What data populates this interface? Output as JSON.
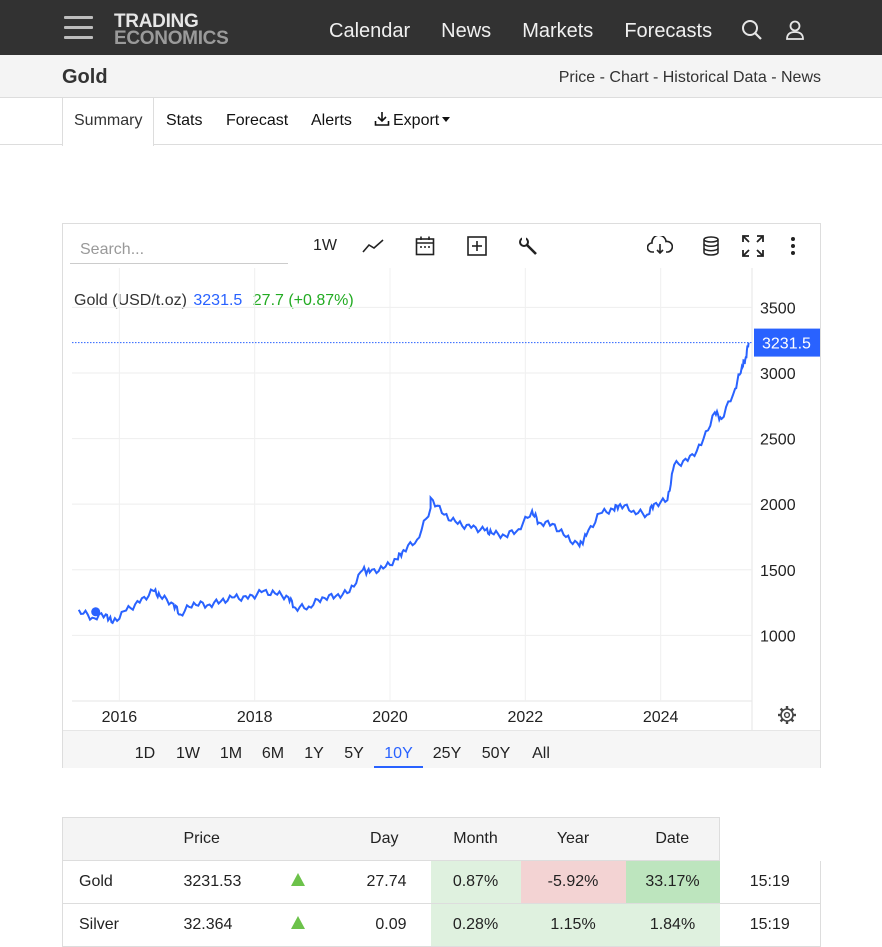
{
  "nav": {
    "logo_line1": "TRADING",
    "logo_line2": "ECONOMICS",
    "links": [
      "Calendar",
      "News",
      "Markets",
      "Forecasts"
    ]
  },
  "titlebar": {
    "title": "Gold",
    "links": "Price - Chart - Historical Data - News"
  },
  "tabs": {
    "summary": "Summary",
    "stats": "Stats",
    "forecast": "Forecast",
    "alerts": "Alerts",
    "export": "Export"
  },
  "chart_toolbar": {
    "search_placeholder": "Search...",
    "interval": "1W"
  },
  "legend": {
    "name": "Gold (USD/t.oz)",
    "price": "3231.5",
    "change": "27.7 (+0.87%)"
  },
  "chart_data": {
    "type": "line",
    "series": [
      {
        "name": "Gold (USD/t.oz)",
        "color": "#2962ff",
        "x": [
          2015.4,
          2015.6,
          2015.8,
          2015.9,
          2016.1,
          2016.3,
          2016.5,
          2016.6,
          2016.8,
          2016.9,
          2017.1,
          2017.3,
          2017.5,
          2017.7,
          2017.9,
          2018.1,
          2018.3,
          2018.5,
          2018.6,
          2018.8,
          2019.0,
          2019.2,
          2019.4,
          2019.6,
          2019.7,
          2019.9,
          2020.1,
          2020.2,
          2020.4,
          2020.6,
          2020.6,
          2020.8,
          2021.0,
          2021.2,
          2021.4,
          2021.5,
          2021.7,
          2021.9,
          2022.1,
          2022.2,
          2022.4,
          2022.6,
          2022.8,
          2022.9,
          2023.1,
          2023.3,
          2023.4,
          2023.6,
          2023.8,
          2023.9,
          2024.1,
          2024.2,
          2024.4,
          2024.6,
          2024.8,
          2024.9,
          2025.1,
          2025.2,
          2025.25,
          2025.3
        ],
        "y": [
          1195,
          1135,
          1160,
          1095,
          1190,
          1250,
          1340,
          1300,
          1240,
          1160,
          1250,
          1230,
          1260,
          1290,
          1280,
          1330,
          1320,
          1290,
          1210,
          1220,
          1290,
          1300,
          1330,
          1500,
          1480,
          1510,
          1580,
          1650,
          1730,
          1970,
          2050,
          1920,
          1850,
          1820,
          1800,
          1780,
          1760,
          1810,
          1950,
          1860,
          1850,
          1750,
          1680,
          1760,
          1930,
          1960,
          2000,
          1950,
          1920,
          2000,
          2030,
          2300,
          2330,
          2450,
          2700,
          2650,
          2880,
          3050,
          3100,
          3231.5
        ]
      }
    ],
    "x_ticks": [
      "2016",
      "2018",
      "2020",
      "2022",
      "2024"
    ],
    "x_tick_values": [
      2016,
      2018,
      2020,
      2022,
      2024
    ],
    "y_ticks": [
      1000,
      1500,
      2000,
      2500,
      3000,
      3500
    ],
    "xlim": [
      2015.3,
      2025.35
    ],
    "ylim": [
      500,
      3800
    ],
    "last_value_label": "3231.5",
    "last_value": 3231.5,
    "grid": true
  },
  "ranges": [
    "1D",
    "1W",
    "1M",
    "6M",
    "1Y",
    "5Y",
    "10Y",
    "25Y",
    "50Y",
    "All"
  ],
  "active_range": "10Y",
  "table": {
    "headers": [
      "",
      "Price",
      "",
      "Day",
      "Month",
      "Year",
      "Date"
    ],
    "rows": [
      {
        "name": "Gold",
        "price": "3231.53",
        "change": "27.74",
        "day": "0.87%",
        "month": "-5.92%",
        "year": "33.17%",
        "date": "15:19"
      },
      {
        "name": "Silver",
        "price": "32.364",
        "change": "0.09",
        "day": "0.28%",
        "month": "1.15%",
        "year": "1.84%",
        "date": "15:19"
      }
    ]
  },
  "colors": {
    "accent": "#2962ff",
    "positive": "#22ab22",
    "nav_bg": "#323232"
  }
}
